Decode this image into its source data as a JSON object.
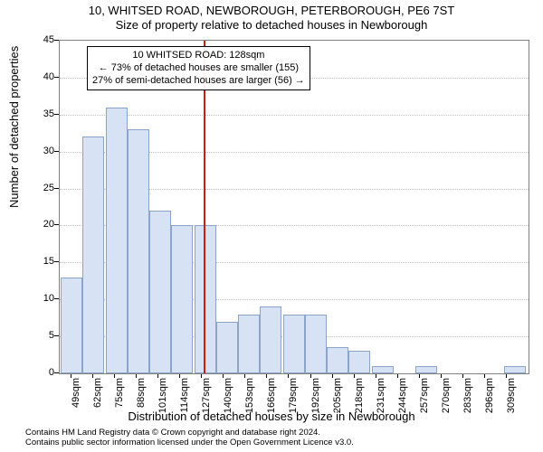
{
  "title": "10, WHITSED ROAD, NEWBOROUGH, PETERBOROUGH, PE6 7ST",
  "subtitle": "Size of property relative to detached houses in Newborough",
  "ylabel": "Number of detached properties",
  "xlabel": "Distribution of detached houses by size in Newborough",
  "footer_line1": "Contains HM Land Registry data © Crown copyright and database right 2024.",
  "footer_line2": "Contains public sector information licensed under the Open Government Licence v3.0.",
  "annotation": {
    "line1": "10 WHITSED ROAD: 128sqm",
    "line2": "← 73% of detached houses are smaller (155)",
    "line3": "27% of semi-detached houses are larger (56) →"
  },
  "chart": {
    "type": "histogram",
    "bar_fill": "#d7e2f4",
    "bar_border": "#8aa5c9",
    "vline_color": "#d11c0c",
    "vline_x": 128,
    "grid_color": "#bfbfbf",
    "ylim": [
      0,
      45
    ],
    "yticks": [
      0,
      5,
      10,
      15,
      20,
      25,
      30,
      35,
      40,
      45
    ],
    "xlim": [
      42,
      322
    ],
    "x_tick_start": 49,
    "x_tick_step": 13,
    "x_tick_count": 21,
    "x_tick_suffix": "sqm",
    "title_fontsize": 13,
    "label_fontsize": 13,
    "tick_fontsize": 11,
    "annotation_fontsize": 11,
    "footer_fontsize": 9.5,
    "bars": [
      {
        "x": 49,
        "h": 13
      },
      {
        "x": 62,
        "h": 32
      },
      {
        "x": 76,
        "h": 36
      },
      {
        "x": 89,
        "h": 33
      },
      {
        "x": 102,
        "h": 22
      },
      {
        "x": 115,
        "h": 20
      },
      {
        "x": 129,
        "h": 20,
        "label": "128sqm"
      },
      {
        "x": 142,
        "h": 7
      },
      {
        "x": 155,
        "h": 8
      },
      {
        "x": 168,
        "h": 9
      },
      {
        "x": 182,
        "h": 8
      },
      {
        "x": 195,
        "h": 8
      },
      {
        "x": 208,
        "h": 3.5
      },
      {
        "x": 221,
        "h": 3
      },
      {
        "x": 235,
        "h": 1
      },
      {
        "x": 248,
        "h": 0
      },
      {
        "x": 261,
        "h": 1
      },
      {
        "x": 274,
        "h": 0
      },
      {
        "x": 288,
        "h": 0
      },
      {
        "x": 301,
        "h": 0
      },
      {
        "x": 314,
        "h": 1
      }
    ]
  }
}
